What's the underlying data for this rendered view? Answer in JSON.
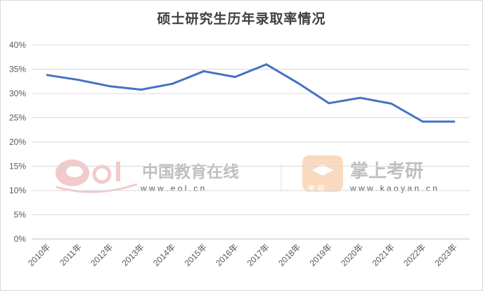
{
  "chart_data": {
    "type": "line",
    "title": "硕士研究生历年录取率情况",
    "categories": [
      "2010年",
      "2011年",
      "2012年",
      "2013年",
      "2014年",
      "2015年",
      "2016年",
      "2017年",
      "2018年",
      "2019年",
      "2020年",
      "2021年",
      "2022年",
      "2023年"
    ],
    "series": [
      {
        "values": [
          33.8,
          32.8,
          31.5,
          30.8,
          32.0,
          34.6,
          33.4,
          36.0,
          32.2,
          28.0,
          29.1,
          27.9,
          24.2,
          24.2
        ]
      }
    ],
    "y_ticks": [
      "0%",
      "5%",
      "10%",
      "15%",
      "20%",
      "25%",
      "30%",
      "35%",
      "40%"
    ],
    "ylim": [
      0,
      40
    ],
    "y_unit": "%",
    "grid": true,
    "line_color": "#4472c4"
  },
  "watermarks": {
    "left_logo_text": "eol",
    "left_cn": "中国教育在线",
    "left_url": "w w w . e o l . c n",
    "right_cn": "掌上考研",
    "right_badge": "考 研",
    "right_url": "w w w . k a o y a n . c n"
  }
}
